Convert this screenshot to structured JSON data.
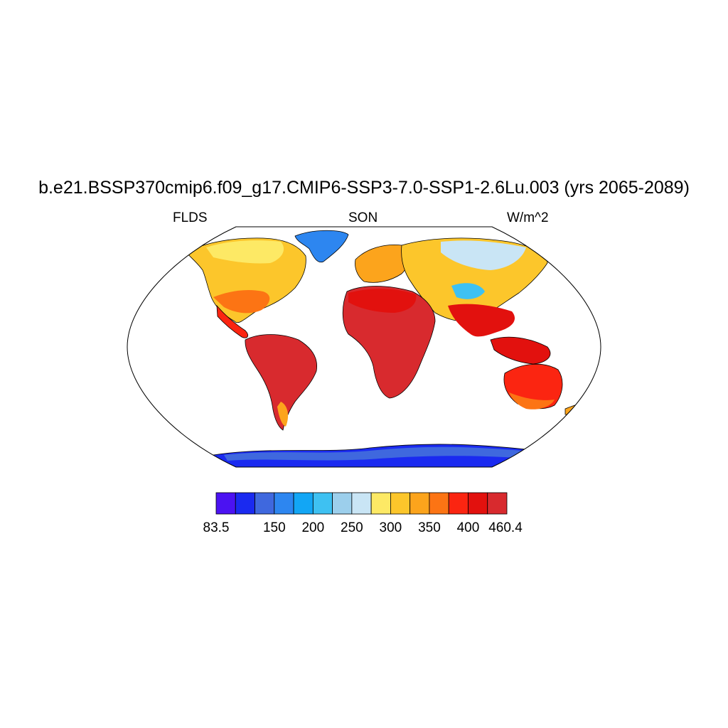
{
  "title": "b.e21.BSSP370cmip6.f09_g17.CMIP6-SSP3-7.0-SSP1-2.6Lu.003 (yrs 2065-2089)",
  "left_string": "FLDS",
  "center_string": "SON",
  "right_string": "W/m^2",
  "colorbar": {
    "colors": [
      "#4b12f2",
      "#1a2af0",
      "#3f68de",
      "#2d86f0",
      "#12a6f5",
      "#3ec1f2",
      "#9ccfec",
      "#c9e5f5",
      "#fde965",
      "#fcc62b",
      "#fca41c",
      "#fc7414",
      "#fb2511",
      "#e2110e",
      "#d82a2e"
    ],
    "labels": [
      "83.5",
      "150",
      "200",
      "250",
      "300",
      "350",
      "400",
      "460.4"
    ]
  },
  "map": {
    "projection": "Robinson",
    "regions": [
      {
        "name": "greenland",
        "level": 5
      },
      {
        "name": "canada-arctic",
        "level": 9
      },
      {
        "name": "north-america",
        "level": 10
      },
      {
        "name": "central-america",
        "level": 13
      },
      {
        "name": "south-america-tropics",
        "level": 14
      },
      {
        "name": "patagonia",
        "level": 11
      },
      {
        "name": "europe",
        "level": 10
      },
      {
        "name": "siberia",
        "level": 9
      },
      {
        "name": "north-africa",
        "level": 13
      },
      {
        "name": "central-africa",
        "level": 14
      },
      {
        "name": "tibet",
        "level": 6
      },
      {
        "name": "south-asia",
        "level": 13
      },
      {
        "name": "maritime-continent",
        "level": 13
      },
      {
        "name": "australia",
        "level": 12
      },
      {
        "name": "antarctica",
        "level": 2
      }
    ]
  }
}
